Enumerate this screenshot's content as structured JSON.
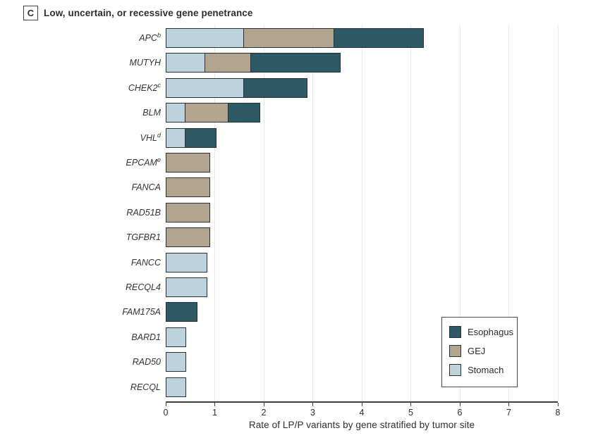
{
  "panel": {
    "letter": "C",
    "title": "Low, uncertain, or recessive gene penetrance"
  },
  "chart_data": {
    "type": "bar",
    "orientation": "horizontal",
    "stacked": true,
    "title": "Low, uncertain, or recessive gene penetrance",
    "xlabel": "Rate of LP/P variants by gene stratified by tumor site",
    "ylabel": "",
    "xlim": [
      0,
      8
    ],
    "xticks": [
      0,
      1,
      2,
      3,
      4,
      5,
      6,
      7,
      8
    ],
    "grid": true,
    "legend_position": "inside-bottom-right",
    "legend_order": [
      "Esophagus",
      "GEJ",
      "Stomach"
    ],
    "stack_order": [
      "Stomach",
      "GEJ",
      "Esophagus"
    ],
    "categories": [
      {
        "gene": "APC",
        "sup": "b"
      },
      {
        "gene": "MUTYH",
        "sup": ""
      },
      {
        "gene": "CHEK2",
        "sup": "c"
      },
      {
        "gene": "BLM",
        "sup": ""
      },
      {
        "gene": "VHL",
        "sup": "d"
      },
      {
        "gene": "EPCAM",
        "sup": "e"
      },
      {
        "gene": "FANCA",
        "sup": ""
      },
      {
        "gene": "RAD51B",
        "sup": ""
      },
      {
        "gene": "TGFBR1",
        "sup": ""
      },
      {
        "gene": "FANCC",
        "sup": ""
      },
      {
        "gene": "RECQL4",
        "sup": ""
      },
      {
        "gene": "FAM175A",
        "sup": ""
      },
      {
        "gene": "BARD1",
        "sup": ""
      },
      {
        "gene": "RAD50",
        "sup": ""
      },
      {
        "gene": "RECQL",
        "sup": ""
      }
    ],
    "series": [
      {
        "name": "Esophagus",
        "color": "#2E5A68",
        "values": [
          1.85,
          1.85,
          1.3,
          0.65,
          0.65,
          0,
          0,
          0,
          0,
          0,
          0,
          0.65,
          0,
          0,
          0
        ]
      },
      {
        "name": "GEJ",
        "color": "#B3A48E",
        "values": [
          1.85,
          0.95,
          0,
          0.9,
          0,
          0.9,
          0.9,
          0.9,
          0.9,
          0,
          0,
          0,
          0,
          0,
          0
        ]
      },
      {
        "name": "Stomach",
        "color": "#BCD2DC",
        "values": [
          1.6,
          0.8,
          1.6,
          0.4,
          0.4,
          0,
          0,
          0,
          0,
          0.85,
          0.85,
          0,
          0.42,
          0.42,
          0.42
        ]
      }
    ],
    "bar_totals": [
      5.3,
      3.6,
      2.9,
      1.95,
      1.05,
      0.9,
      0.9,
      0.9,
      0.9,
      0.85,
      0.85,
      0.65,
      0.42,
      0.42,
      0.42
    ]
  },
  "colors": {
    "esophagus": "#2E5A68",
    "gej": "#B3A48E",
    "stomach": "#BCD2DC",
    "bar_border": "#263238",
    "axis": "#3f3f3f",
    "grid": "#e9e9e9",
    "text": "#2e2e2e",
    "background": "#ffffff"
  }
}
